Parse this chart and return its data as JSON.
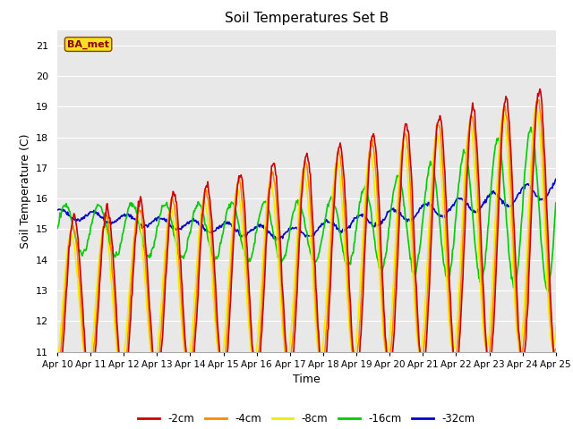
{
  "title": "Soil Temperatures Set B",
  "xlabel": "Time",
  "ylabel": "Soil Temperature (C)",
  "ylim": [
    11.0,
    21.5
  ],
  "yticks": [
    11.0,
    12.0,
    13.0,
    14.0,
    15.0,
    16.0,
    17.0,
    18.0,
    19.0,
    20.0,
    21.0
  ],
  "bg_color": "#e8e8e8",
  "fig_color": "#ffffff",
  "label_box": "BA_met",
  "series_colors": [
    "#cc0000",
    "#ff8800",
    "#eeee00",
    "#00cc00",
    "#0000cc"
  ],
  "series_labels": [
    "-2cm",
    "-4cm",
    "-8cm",
    "-16cm",
    "-32cm"
  ],
  "date_labels": [
    "Apr 10",
    "Apr 11",
    "Apr 12",
    "Apr 13",
    "Apr 14",
    "Apr 15",
    "Apr 16",
    "Apr 17",
    "Apr 18",
    "Apr 19",
    "Apr 20",
    "Apr 21",
    "Apr 22",
    "Apr 23",
    "Apr 24",
    "Apr 25"
  ]
}
